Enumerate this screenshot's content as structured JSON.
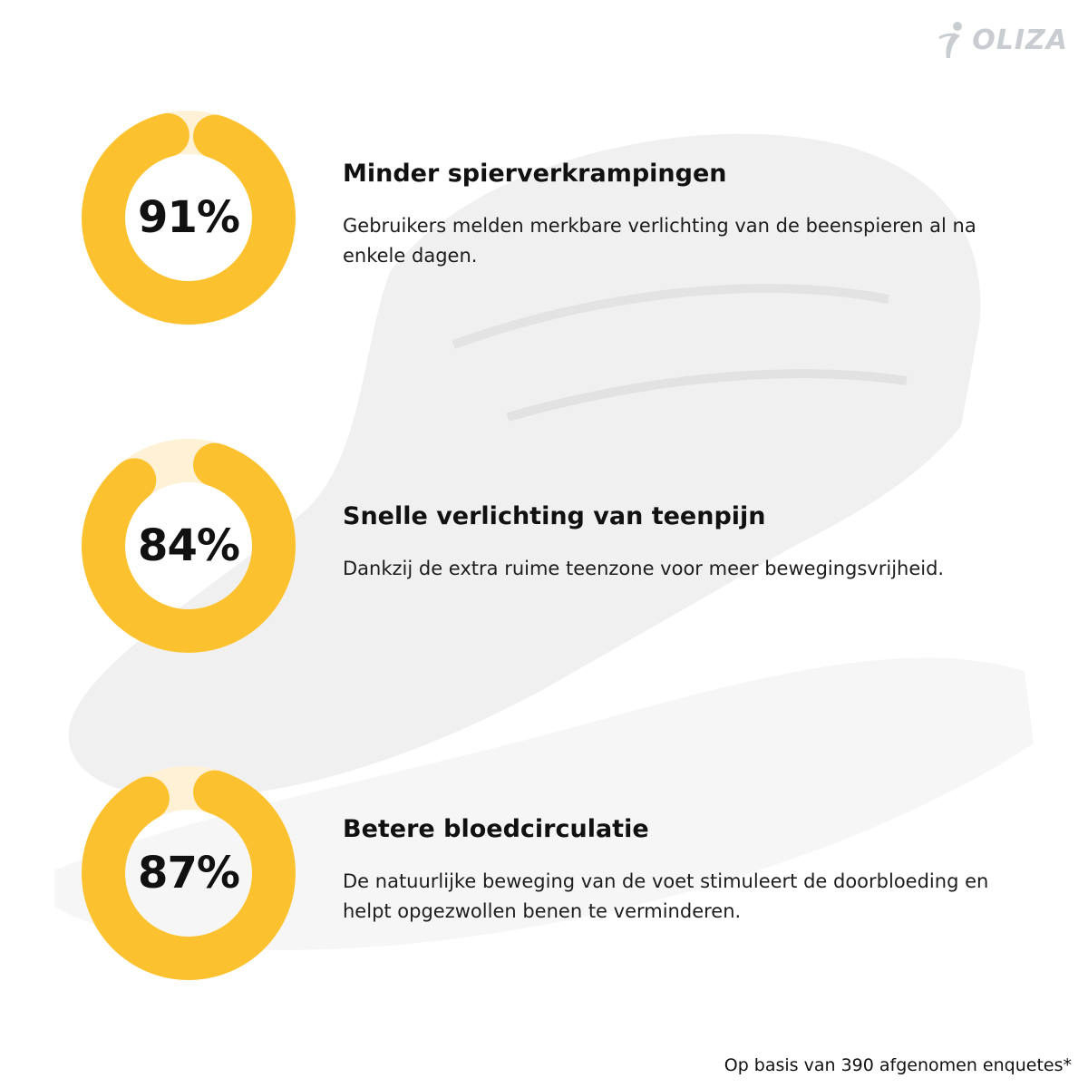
{
  "brand": {
    "logo_text": "OLIZA",
    "logo_icon": "runner-icon"
  },
  "colors": {
    "accent": "#fcc12e",
    "accent_light": "#fff1d6",
    "text": "#111111"
  },
  "stats": [
    {
      "value": "91%",
      "percent": 91,
      "title": "Minder spierverkrampingen",
      "description": "Gebruikers melden merkbare verlichting van de beenspieren al na enkele dagen."
    },
    {
      "value": "84%",
      "percent": 84,
      "title": "Snelle verlichting van teenpijn",
      "description": "Dankzij de extra ruime teenzone voor meer bewegingsvrijheid."
    },
    {
      "value": "87%",
      "percent": 87,
      "title": "Betere bloedcirculatie",
      "description": "De natuurlijke beweging van de voet stimuleert de doorbloeding en helpt opgezwollen benen te verminderen."
    }
  ],
  "footnote": "Op basis van 390 afgenomen enquetes*",
  "background": {
    "image": "faded-shoe-image"
  }
}
